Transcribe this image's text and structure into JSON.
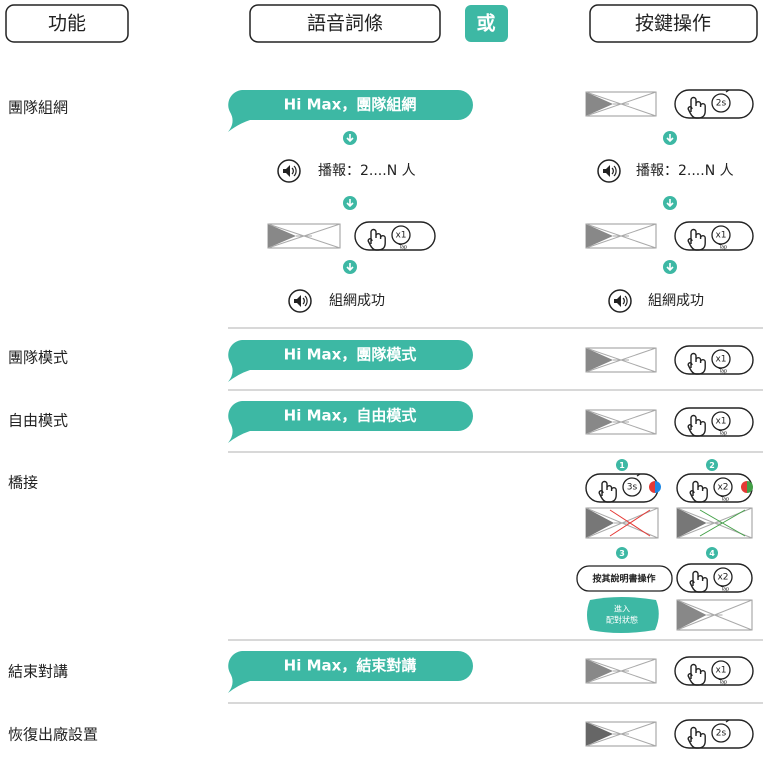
{
  "header": {
    "function": "功能",
    "voice": "語音詞條",
    "or": "或",
    "button": "按鍵操作"
  },
  "rows": [
    {
      "function": "團隊組網",
      "voice": "Hi Max，團隊組網",
      "broadcast": "播報：2....N 人",
      "result": "組網成功"
    },
    {
      "function": "團隊模式",
      "voice": "Hi Max，團隊模式"
    },
    {
      "function": "自由模式",
      "voice": "Hi Max，自由模式"
    },
    {
      "function": "橋接"
    },
    {
      "function": "結束對講",
      "voice": "Hi Max，結束對講"
    },
    {
      "function": "恢復出廠設置"
    }
  ],
  "icon_labels": {
    "tap": "Tap",
    "x1": "x1",
    "x2": "x2",
    "hold2": "2s",
    "hold3": "3s"
  },
  "bridge": {
    "steps": [
      "1",
      "2",
      "3",
      "4"
    ],
    "manual": "按其說明書操作",
    "pairing": [
      "進入",
      "配對狀態"
    ]
  }
}
